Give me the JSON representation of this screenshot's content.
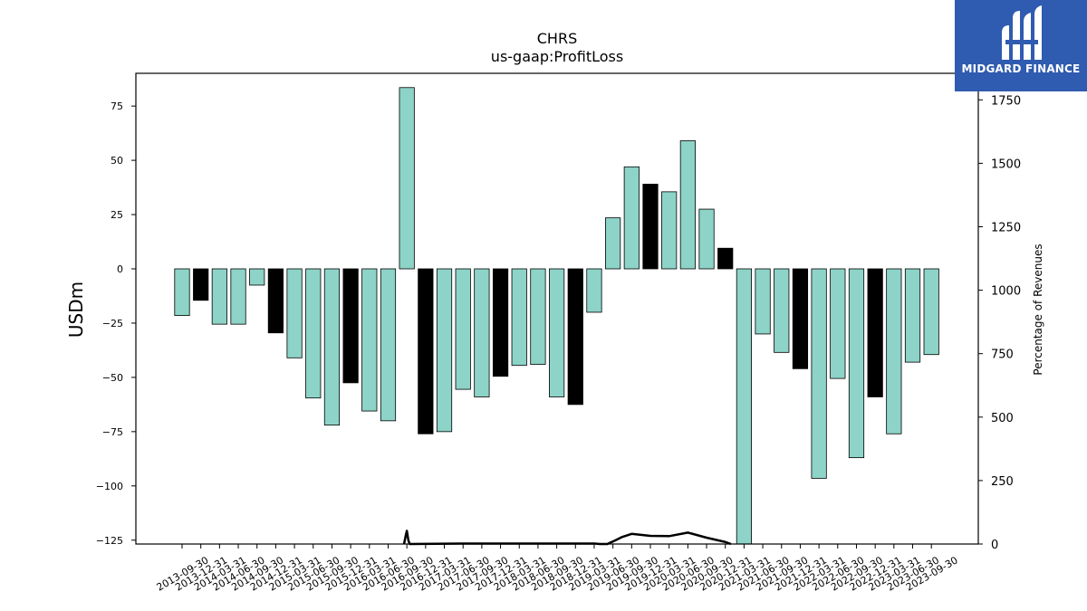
{
  "chart_data": {
    "type": "bar",
    "title": "CHRS",
    "subtitle": "us-gaap:ProfitLoss",
    "ylabel": "USDm",
    "y2label": "Percentage of Revenues",
    "ylim": [
      -127,
      90
    ],
    "y2lim": [
      0,
      1920
    ],
    "yticks": [
      75,
      50,
      25,
      0,
      -25,
      -50,
      -75,
      -100,
      -125
    ],
    "y2ticks": [
      1750,
      1500,
      1250,
      1000,
      750,
      500,
      250,
      0
    ],
    "categories": [
      "2013-09-30",
      "2013-12-31",
      "2014-03-31",
      "2014-06-30",
      "2014-09-30",
      "2014-12-31",
      "2015-03-31",
      "2015-06-30",
      "2015-09-30",
      "2015-12-31",
      "2016-03-31",
      "2016-06-30",
      "2016-09-30",
      "2016-12-31",
      "2017-03-31",
      "2017-06-30",
      "2017-09-30",
      "2017-12-31",
      "2018-03-31",
      "2018-06-30",
      "2018-09-30",
      "2018-12-31",
      "2019-03-31",
      "2019-06-30",
      "2019-09-30",
      "2019-12-31",
      "2020-03-31",
      "2020-06-30",
      "2020-09-30",
      "2020-12-31",
      "2021-03-31",
      "2021-06-30",
      "2021-09-30",
      "2021-12-31",
      "2022-03-31",
      "2022-06-30",
      "2022-09-30",
      "2022-12-31",
      "2023-03-31",
      "2023-06-30",
      "2023-09-30"
    ],
    "values": [
      -21.5,
      -14.5,
      -25.5,
      -25.5,
      -7.5,
      -29.5,
      -41,
      -59.5,
      -72,
      -52.5,
      -65.5,
      -70,
      83.5,
      -76,
      -75,
      -55.5,
      -59,
      -49.5,
      -44.5,
      -44,
      -59,
      -62.5,
      -20,
      23.5,
      47,
      39,
      35.5,
      59,
      27.5,
      9.5,
      -127,
      -30,
      -38.5,
      -46,
      -96.5,
      -50.5,
      -87,
      -59,
      -76,
      -43,
      -39.5
    ],
    "bar_colors": [
      "teal",
      "black",
      "teal",
      "teal",
      "teal",
      "black",
      "teal",
      "teal",
      "teal",
      "black",
      "teal",
      "teal",
      "teal",
      "black",
      "teal",
      "teal",
      "teal",
      "black",
      "teal",
      "teal",
      "teal",
      "black",
      "teal",
      "teal",
      "teal",
      "black",
      "teal",
      "teal",
      "teal",
      "black",
      "teal",
      "teal",
      "teal",
      "black",
      "teal",
      "teal",
      "teal",
      "black",
      "teal",
      "teal",
      "teal"
    ],
    "line_series": {
      "axis": "right",
      "x_index": [
        11.85,
        11.93,
        12,
        12.08,
        12.15,
        15.5,
        22,
        22.3,
        22.7,
        23,
        23.5,
        24,
        25,
        26,
        27,
        28,
        29,
        29.3
      ],
      "values": [
        0,
        30,
        52,
        15,
        0,
        2,
        2,
        0,
        0,
        10,
        28,
        40,
        32,
        31,
        45,
        25,
        8,
        0
      ]
    },
    "colors": {
      "teal": "#8dd3c7",
      "black": "#000000",
      "line": "#000000",
      "logo_bg": "#2f5bb0"
    }
  },
  "logo": {
    "text": "MIDGARD FINANCE",
    "icon": "midgard-logo-icon"
  }
}
